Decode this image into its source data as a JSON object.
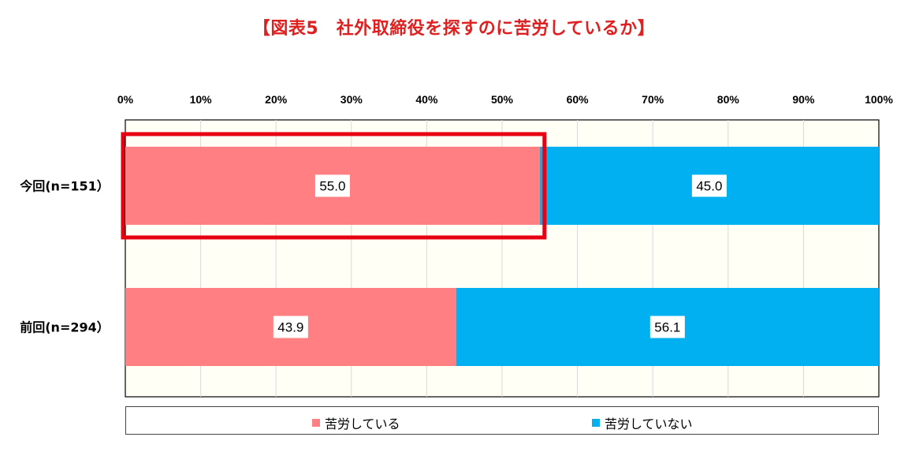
{
  "title": "【図表5　社外取締役を探すのに苦労しているか】",
  "colors": {
    "series_1": "#ff7f82",
    "series_2": "#00b0f0",
    "highlight": "#e60012",
    "plot_bg": "#fffff5"
  },
  "chart_data": {
    "type": "bar",
    "orientation": "horizontal",
    "stacked": true,
    "percent": true,
    "title": "【図表5　社外取締役を探すのに苦労しているか】",
    "categories": [
      "今回(n=151）",
      "前回(n=294）"
    ],
    "series": [
      {
        "name": "苦労している",
        "values": [
          55.0,
          43.9
        ]
      },
      {
        "name": "苦労していない",
        "values": [
          45.0,
          56.1
        ]
      }
    ],
    "value_labels": [
      [
        "55.0",
        "43.9"
      ],
      [
        "45.0",
        "56.1"
      ]
    ],
    "x_ticks": [
      "0%",
      "10%",
      "20%",
      "30%",
      "40%",
      "50%",
      "60%",
      "70%",
      "80%",
      "90%",
      "100%"
    ],
    "xlim": [
      0,
      100
    ],
    "x_axis_position": "top",
    "gridlines": true,
    "legend_position": "bottom",
    "highlighted": {
      "category": "今回(n=151）",
      "series": "苦労している"
    }
  }
}
